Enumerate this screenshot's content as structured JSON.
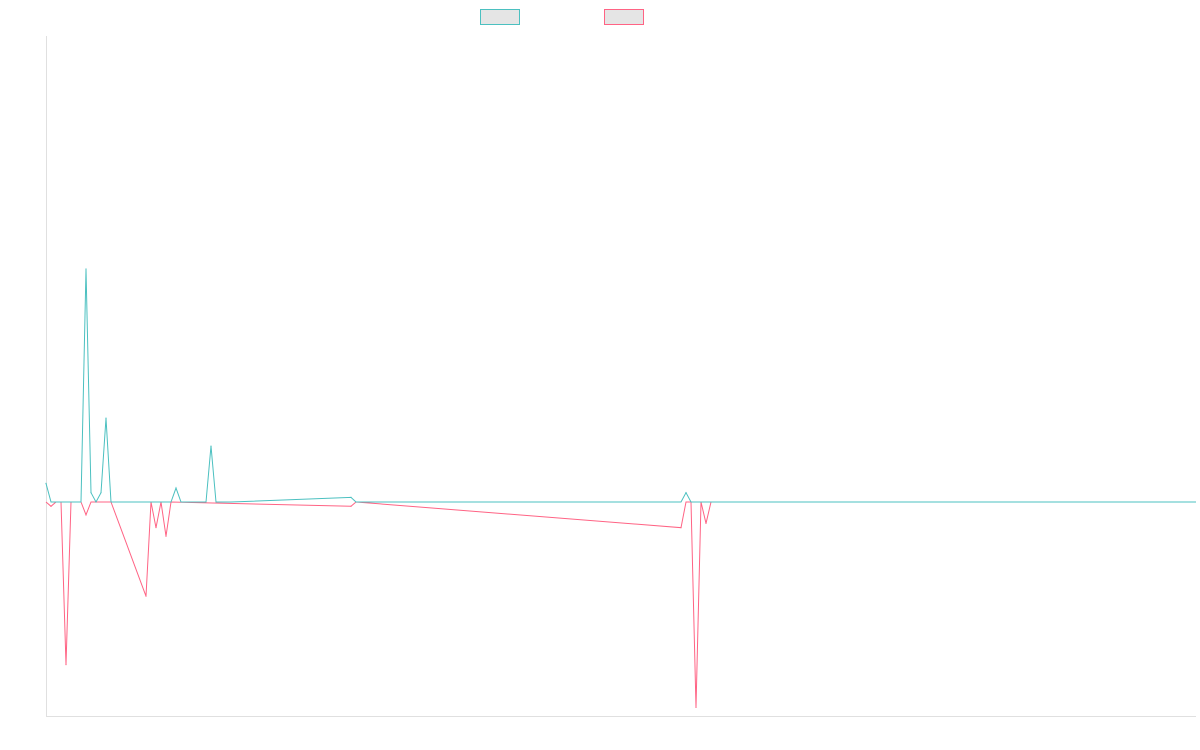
{
  "colors": {
    "series_a": "#4bc0c0",
    "series_b": "#ff6384",
    "axis": "#e0e0e0",
    "legend_fill": "#e5e5e5"
  },
  "chart_data": {
    "type": "line",
    "legend_position": "top-center",
    "grid": false,
    "axis_labels_visible": false,
    "x_index_range": [
      0,
      230
    ],
    "ylim": [
      -50,
      100
    ],
    "series": [
      {
        "color_key": "series_a",
        "points": [
          [
            0,
            4
          ],
          [
            1,
            0
          ],
          [
            2,
            0
          ],
          [
            3,
            0
          ],
          [
            4,
            0
          ],
          [
            5,
            0
          ],
          [
            6,
            0
          ],
          [
            7,
            0
          ],
          [
            8,
            50
          ],
          [
            9,
            2
          ],
          [
            10,
            0
          ],
          [
            11,
            2
          ],
          [
            12,
            18
          ],
          [
            13,
            0
          ],
          [
            20,
            0
          ],
          [
            21,
            0
          ],
          [
            22,
            0
          ],
          [
            23,
            0
          ],
          [
            24,
            0
          ],
          [
            25,
            0
          ],
          [
            26,
            3
          ],
          [
            27,
            0
          ],
          [
            28,
            0
          ],
          [
            29,
            0
          ],
          [
            30,
            0
          ],
          [
            31,
            0
          ],
          [
            32,
            0
          ],
          [
            33,
            12
          ],
          [
            34,
            0
          ],
          [
            35,
            0
          ],
          [
            36,
            0
          ],
          [
            37,
            0
          ],
          [
            61,
            1
          ],
          [
            62,
            0
          ],
          [
            127,
            0
          ],
          [
            128,
            2
          ],
          [
            129,
            0
          ],
          [
            130,
            0
          ],
          [
            131,
            0
          ],
          [
            132,
            0
          ],
          [
            133,
            0
          ],
          [
            134,
            0
          ],
          [
            135,
            0
          ],
          [
            136,
            0
          ],
          [
            137,
            0
          ],
          [
            138,
            0
          ],
          [
            139,
            0
          ],
          [
            140,
            0
          ],
          [
            141,
            0
          ],
          [
            142,
            0
          ],
          [
            143,
            0
          ],
          [
            144,
            0
          ],
          [
            145,
            0
          ],
          [
            146,
            0
          ],
          [
            147,
            0
          ],
          [
            148,
            0
          ],
          [
            149,
            0
          ],
          [
            150,
            0
          ],
          [
            151,
            0
          ]
        ]
      },
      {
        "color_key": "series_b",
        "points": [
          [
            0,
            0
          ],
          [
            1,
            -1
          ],
          [
            2,
            0
          ],
          [
            3,
            0
          ],
          [
            4,
            -38
          ],
          [
            5,
            0
          ],
          [
            6,
            0
          ],
          [
            7,
            0
          ],
          [
            8,
            -3
          ],
          [
            9,
            0
          ],
          [
            10,
            0
          ],
          [
            11,
            0
          ],
          [
            12,
            0
          ],
          [
            13,
            0
          ],
          [
            20,
            -22
          ],
          [
            21,
            0
          ],
          [
            22,
            -6
          ],
          [
            23,
            0
          ],
          [
            24,
            -8
          ],
          [
            25,
            0
          ],
          [
            61,
            -1
          ],
          [
            62,
            0
          ],
          [
            127,
            -6
          ],
          [
            128,
            0
          ],
          [
            129,
            0
          ],
          [
            130,
            -48
          ],
          [
            131,
            0
          ],
          [
            132,
            -5
          ],
          [
            133,
            0
          ]
        ]
      }
    ]
  }
}
